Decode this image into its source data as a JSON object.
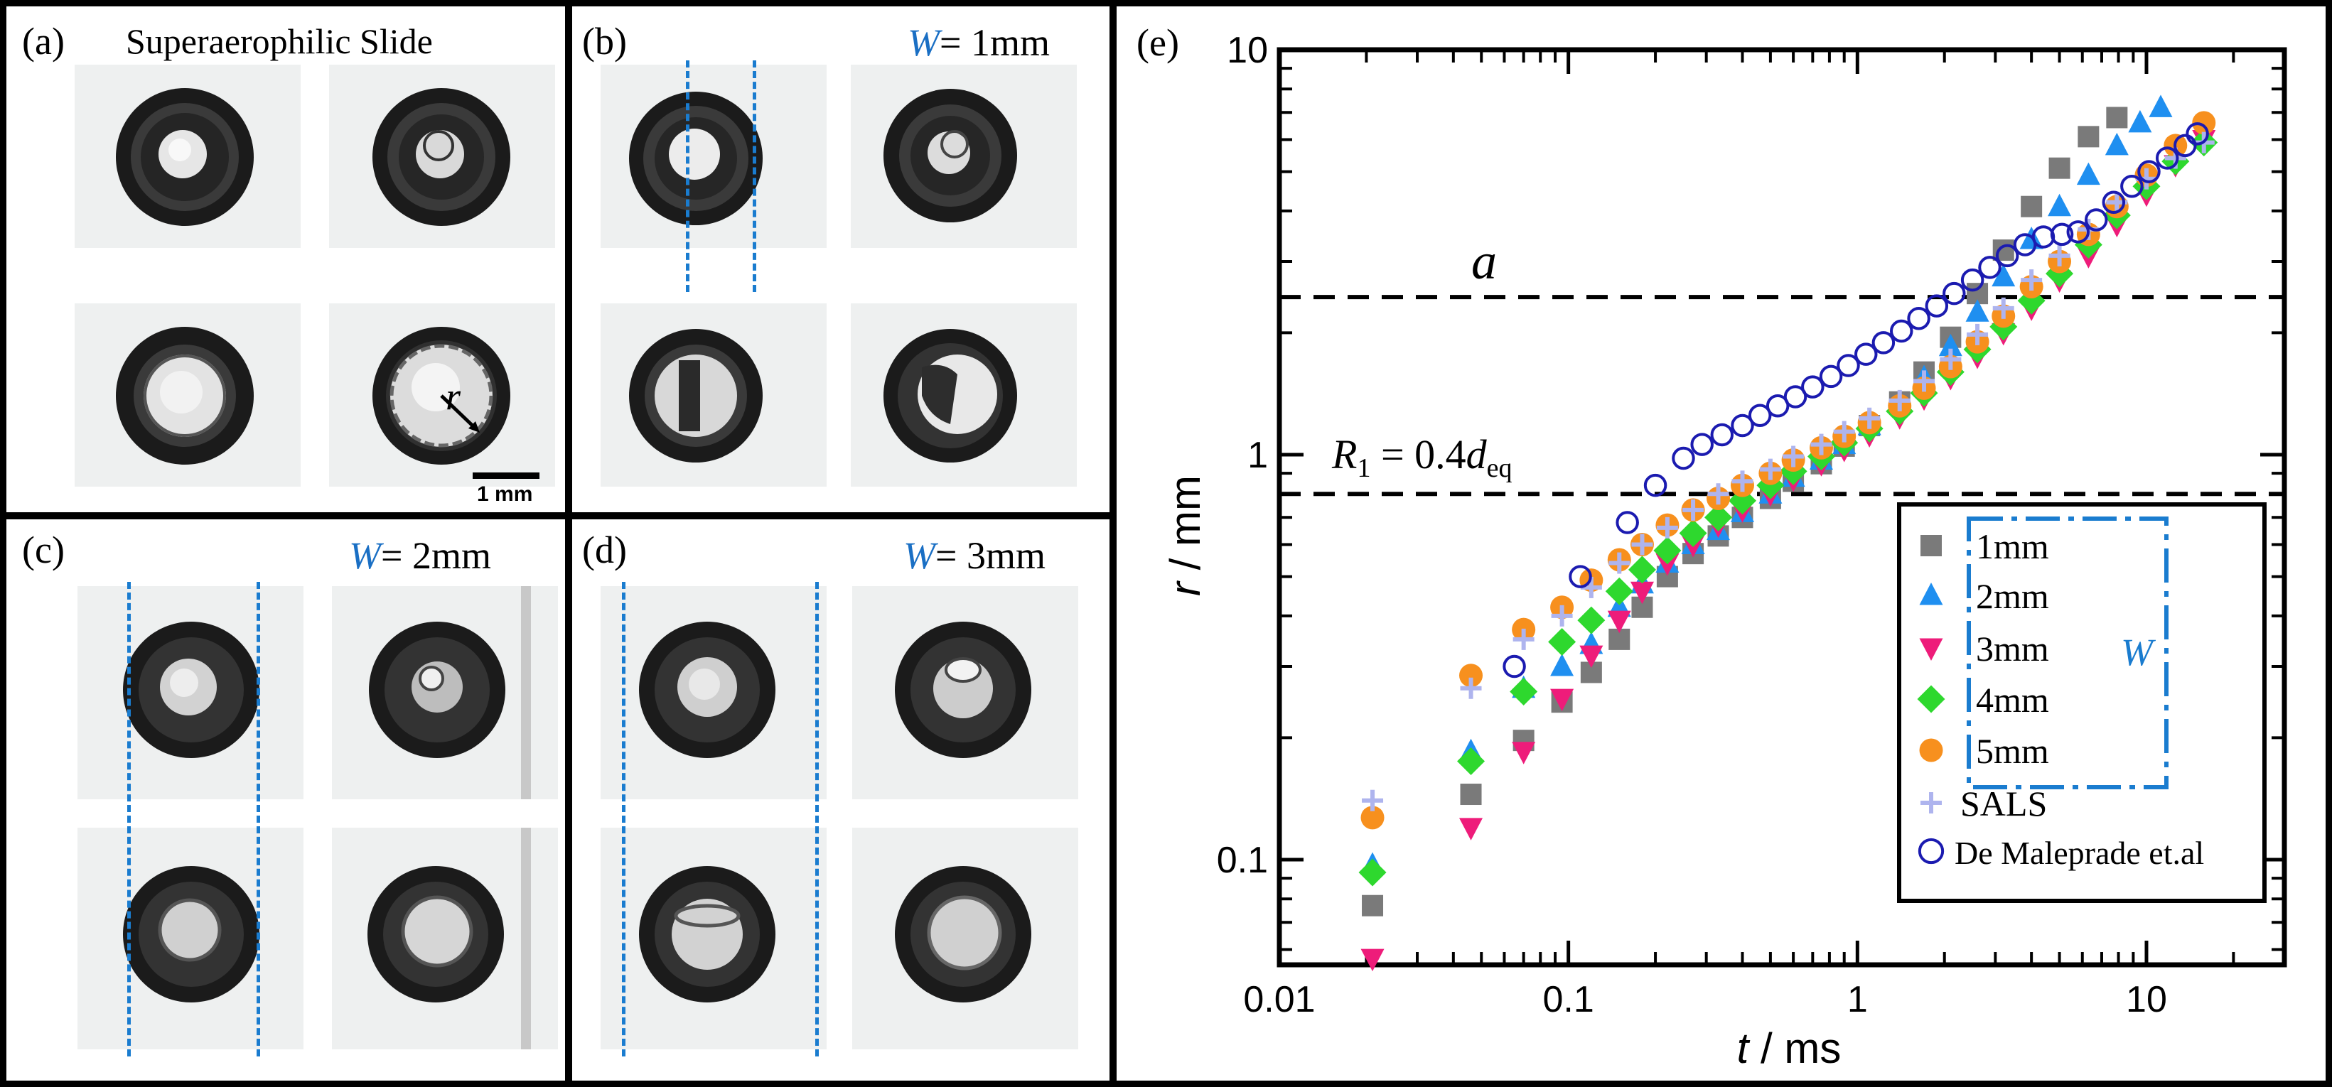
{
  "panels": {
    "a": {
      "label": "(a)",
      "title": "Superaerophilic Slide",
      "radius_label": "r",
      "scale_bar": "1 mm"
    },
    "b": {
      "label": "(b)",
      "w_symbol": "W",
      "w_value": "= 1mm"
    },
    "c": {
      "label": "(c)",
      "w_symbol": "W",
      "w_value": "= 2mm"
    },
    "d": {
      "label": "(d)",
      "w_symbol": "W",
      "w_value": "= 3mm"
    },
    "e": {
      "label": "(e)"
    }
  },
  "colors": {
    "series_1mm": "#7a7a7a",
    "series_2mm": "#1f8ff0",
    "series_3mm": "#ee1c7a",
    "series_4mm": "#2ed82e",
    "series_5mm": "#f7901e",
    "series_sals": "#aeb4ee",
    "series_demaleprade": "#1b1bb0",
    "dash_blue": "#1a7ccf"
  },
  "chart_data": {
    "type": "scatter",
    "xscale": "log",
    "yscale": "log",
    "xlabel_var": "t",
    "xlabel_unit": " / ms",
    "ylabel_var": "r",
    "ylabel_unit": " / mm",
    "xlim": [
      0.01,
      30
    ],
    "ylim": [
      0.055,
      10
    ],
    "x_ticks": [
      {
        "value": 0.01,
        "label": "0.01"
      },
      {
        "value": 0.1,
        "label": "0.1"
      },
      {
        "value": 1,
        "label": "1"
      },
      {
        "value": 10,
        "label": "10"
      }
    ],
    "y_ticks": [
      {
        "value": 0.1,
        "label": "0.1"
      },
      {
        "value": 1,
        "label": "1"
      },
      {
        "value": 10,
        "label": "10"
      }
    ],
    "hlines": [
      {
        "y": 2.45,
        "label": "a"
      },
      {
        "y": 0.8,
        "label_main": "R",
        "label_sub": "1",
        "label_mid": " = 0.4",
        "label_var": "d",
        "label_sub2": "eq"
      }
    ],
    "legend": {
      "placement": "bottom-right",
      "group_label": "W",
      "entries": [
        "1mm",
        "2mm",
        "3mm",
        "4mm",
        "5mm",
        "SALS",
        "De Maleprade et.al"
      ]
    },
    "series": [
      {
        "name": "1mm",
        "marker": "square",
        "x": [
          0.021,
          0.046,
          0.07,
          0.095,
          0.12,
          0.15,
          0.18,
          0.22,
          0.27,
          0.33,
          0.4,
          0.5,
          0.6,
          0.75,
          0.9,
          1.1,
          1.4,
          1.7,
          2.1,
          2.6,
          3.2,
          4.0,
          5.0,
          6.3,
          7.9
        ],
        "y": [
          0.077,
          0.145,
          0.197,
          0.245,
          0.29,
          0.35,
          0.42,
          0.5,
          0.57,
          0.63,
          0.7,
          0.78,
          0.86,
          0.95,
          1.05,
          1.18,
          1.35,
          1.6,
          1.95,
          2.5,
          3.2,
          4.1,
          5.1,
          6.1,
          6.8
        ]
      },
      {
        "name": "2mm",
        "marker": "triangle",
        "x": [
          0.021,
          0.046,
          0.07,
          0.095,
          0.12,
          0.15,
          0.18,
          0.22,
          0.27,
          0.33,
          0.4,
          0.5,
          0.6,
          0.75,
          0.9,
          1.1,
          1.4,
          1.7,
          2.1,
          2.6,
          3.2,
          4.0,
          5.0,
          6.3,
          7.9,
          9.5,
          11.2
        ],
        "y": [
          0.097,
          0.185,
          0.265,
          0.3,
          0.34,
          0.42,
          0.48,
          0.54,
          0.6,
          0.65,
          0.72,
          0.8,
          0.88,
          0.97,
          1.06,
          1.18,
          1.34,
          1.55,
          1.85,
          2.25,
          2.75,
          3.4,
          4.1,
          4.9,
          5.8,
          6.6,
          7.2
        ]
      },
      {
        "name": "3mm",
        "marker": "triangle-down",
        "x": [
          0.021,
          0.046,
          0.07,
          0.095,
          0.12,
          0.15,
          0.18,
          0.22,
          0.27,
          0.33,
          0.4,
          0.5,
          0.6,
          0.75,
          0.9,
          1.1,
          1.4,
          1.7,
          2.1,
          2.6,
          3.2,
          4.0,
          5.0,
          6.3,
          7.9,
          10,
          12.6,
          15.8
        ],
        "y": [
          0.057,
          0.12,
          0.185,
          0.25,
          0.32,
          0.39,
          0.46,
          0.54,
          0.6,
          0.67,
          0.73,
          0.8,
          0.87,
          0.95,
          1.03,
          1.12,
          1.24,
          1.38,
          1.55,
          1.75,
          2.0,
          2.3,
          2.7,
          3.1,
          3.7,
          4.4,
          5.2,
          6.0
        ]
      },
      {
        "name": "4mm",
        "marker": "diamond",
        "x": [
          0.021,
          0.046,
          0.07,
          0.095,
          0.12,
          0.15,
          0.18,
          0.22,
          0.27,
          0.33,
          0.4,
          0.5,
          0.6,
          0.75,
          0.9,
          1.1,
          1.4,
          1.7,
          2.1,
          2.6,
          3.2,
          4.0,
          5.0,
          6.3,
          7.9,
          10,
          12.6,
          15.8
        ],
        "y": [
          0.093,
          0.175,
          0.26,
          0.345,
          0.39,
          0.46,
          0.52,
          0.58,
          0.64,
          0.7,
          0.77,
          0.84,
          0.91,
          0.99,
          1.07,
          1.16,
          1.28,
          1.42,
          1.6,
          1.82,
          2.07,
          2.4,
          2.8,
          3.3,
          3.9,
          4.6,
          5.3,
          5.9
        ]
      },
      {
        "name": "5mm",
        "marker": "circle-filled",
        "x": [
          0.021,
          0.046,
          0.07,
          0.095,
          0.12,
          0.15,
          0.18,
          0.22,
          0.27,
          0.33,
          0.4,
          0.5,
          0.6,
          0.75,
          0.9,
          1.1,
          1.4,
          1.7,
          2.1,
          2.6,
          3.2,
          4.0,
          5.0,
          6.3,
          7.9,
          10,
          12.6,
          15.8
        ],
        "y": [
          0.127,
          0.285,
          0.37,
          0.42,
          0.49,
          0.55,
          0.6,
          0.67,
          0.73,
          0.78,
          0.84,
          0.9,
          0.97,
          1.04,
          1.11,
          1.2,
          1.32,
          1.46,
          1.65,
          1.9,
          2.2,
          2.6,
          3.0,
          3.5,
          4.1,
          4.9,
          5.8,
          6.6
        ]
      },
      {
        "name": "SALS",
        "marker": "plus",
        "x": [
          0.021,
          0.046,
          0.07,
          0.095,
          0.12,
          0.15,
          0.18,
          0.22,
          0.27,
          0.33,
          0.4,
          0.5,
          0.6,
          0.75,
          0.9,
          1.1,
          1.4,
          1.7,
          2.1,
          2.6,
          3.2,
          4.0,
          5.0,
          6.3,
          7.9,
          10,
          12.6,
          15.8
        ],
        "y": [
          0.14,
          0.265,
          0.35,
          0.4,
          0.47,
          0.54,
          0.6,
          0.66,
          0.73,
          0.8,
          0.86,
          0.92,
          0.99,
          1.06,
          1.14,
          1.23,
          1.36,
          1.52,
          1.72,
          1.98,
          2.3,
          2.7,
          3.1,
          3.6,
          4.2,
          4.8,
          5.4,
          5.9
        ]
      },
      {
        "name": "De Maleprade et.al",
        "marker": "circle-open",
        "x": [
          0.065,
          0.11,
          0.16,
          0.2,
          0.25,
          0.29,
          0.34,
          0.4,
          0.46,
          0.53,
          0.61,
          0.7,
          0.81,
          0.93,
          1.07,
          1.23,
          1.42,
          1.63,
          1.88,
          2.16,
          2.5,
          2.87,
          3.3,
          3.8,
          4.4,
          5.1,
          5.8,
          6.7,
          7.7,
          8.9,
          10.2,
          11.8,
          13.6,
          15
        ],
        "y": [
          0.3,
          0.5,
          0.68,
          0.84,
          0.98,
          1.06,
          1.12,
          1.18,
          1.25,
          1.32,
          1.39,
          1.47,
          1.56,
          1.66,
          1.77,
          1.89,
          2.02,
          2.17,
          2.33,
          2.5,
          2.7,
          2.9,
          3.1,
          3.3,
          3.45,
          3.5,
          3.55,
          3.8,
          4.2,
          4.6,
          5.0,
          5.4,
          5.8,
          6.2
        ]
      }
    ]
  }
}
